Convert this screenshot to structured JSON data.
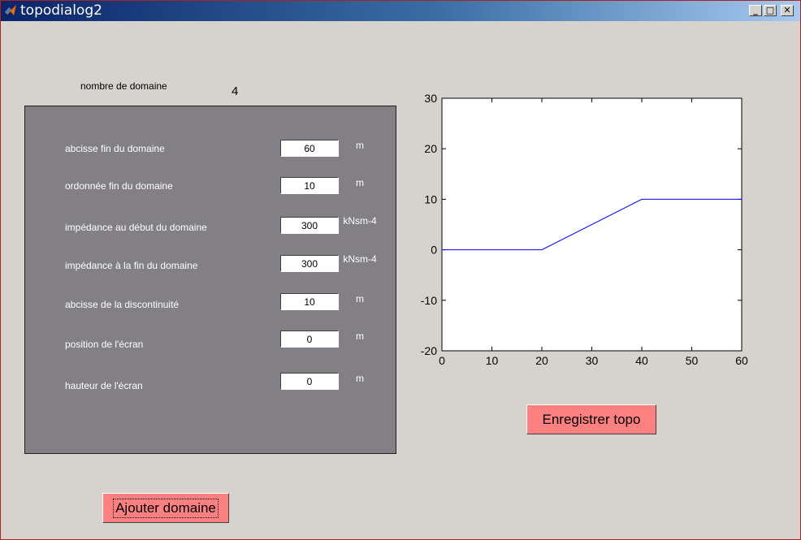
{
  "window": {
    "title": "topodialog2",
    "colors": {
      "titlebar_start": "#0a246a",
      "titlebar_end": "#a6caf0",
      "face": "#d6d3ce",
      "panel": "#828084",
      "button": "#ff8080",
      "line": "#0000ff"
    }
  },
  "header": {
    "domain_count_label": "nombre de domaine",
    "domain_count_value": "4"
  },
  "form": {
    "rows": [
      {
        "label": "abcisse fin du domaine",
        "value": "60",
        "unit": "m"
      },
      {
        "label": "ordonnée fin du domaine",
        "value": "10",
        "unit": "m"
      },
      {
        "label": "impédance au début du domaine",
        "value": "300",
        "unit": "kNsm-4"
      },
      {
        "label": "impédance à la fin du domaine",
        "value": "300",
        "unit": "kNsm-4"
      },
      {
        "label": "abcisse de la discontinuité",
        "value": "10",
        "unit": "m"
      },
      {
        "label": "position de l'écran",
        "value": "0",
        "unit": "m"
      },
      {
        "label": "hauteur de l'écran",
        "value": "0",
        "unit": "m"
      }
    ]
  },
  "buttons": {
    "add_domain": "Ajouter domaine",
    "save_topo": "Enregistrer topo"
  },
  "chart_data": {
    "type": "line",
    "series": [
      {
        "x": [
          0,
          20,
          40,
          60
        ],
        "y": [
          0,
          0,
          10,
          10
        ]
      }
    ],
    "xlim": [
      0,
      60
    ],
    "ylim": [
      -20,
      30
    ],
    "xticks": [
      "0",
      "10",
      "20",
      "30",
      "40",
      "50",
      "60"
    ],
    "yticks": [
      "-20",
      "-10",
      "0",
      "10",
      "20",
      "30"
    ],
    "grid": false
  }
}
